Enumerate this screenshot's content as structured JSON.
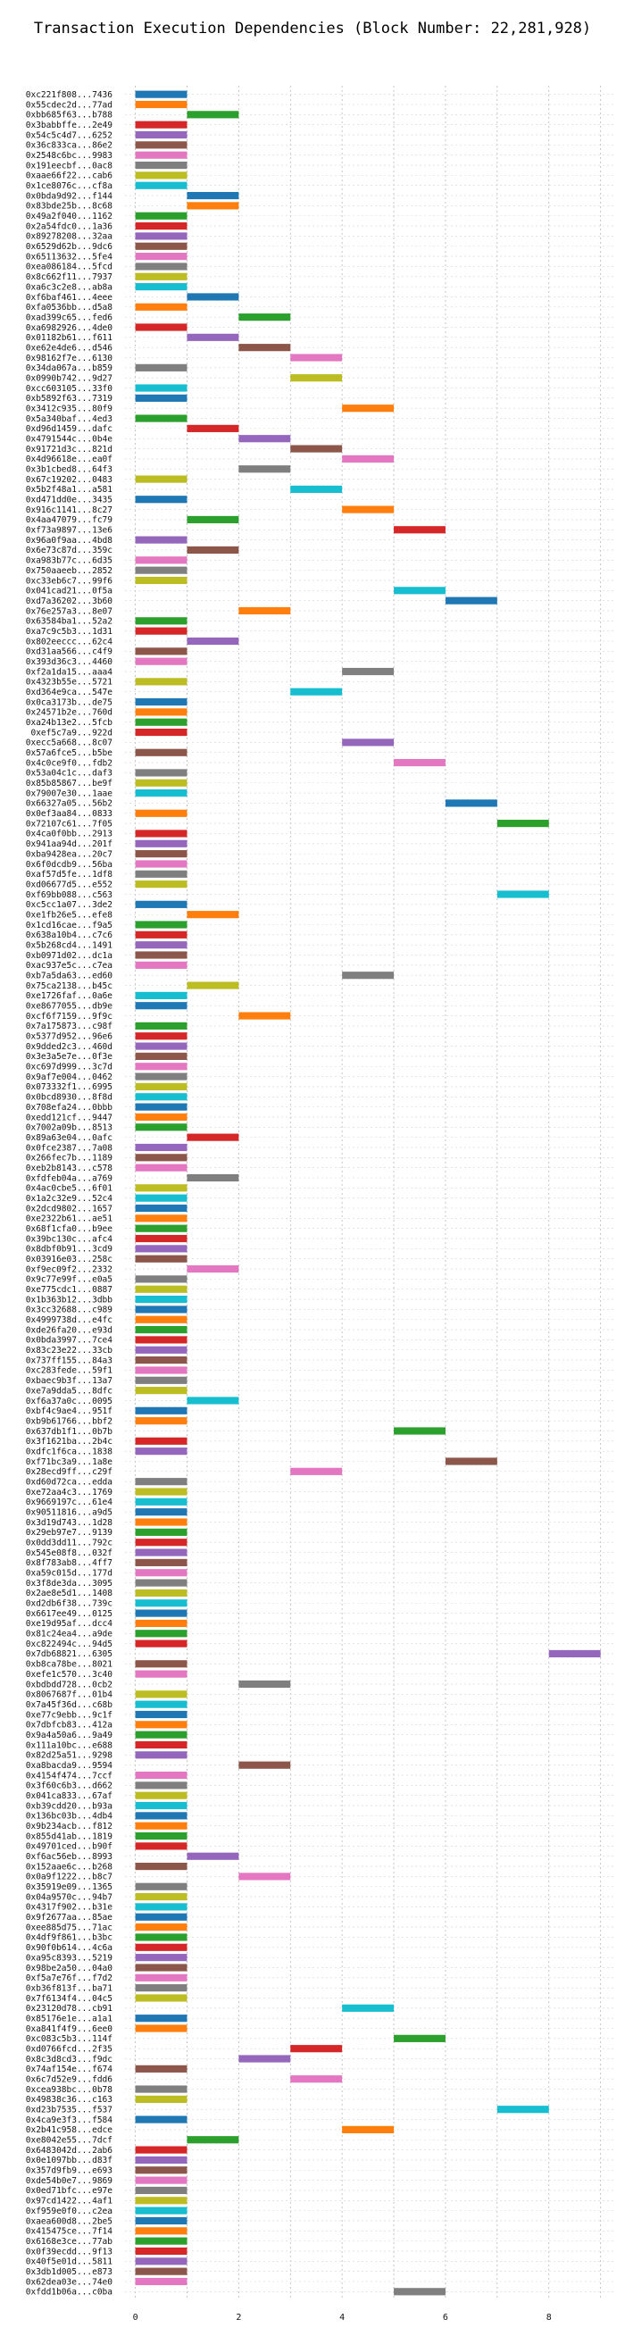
{
  "chart_data": {
    "type": "bar",
    "orientation": "horizontal-gantt",
    "title": "Transaction Execution Dependencies (Block Number: 22,281,928)",
    "xlabel": "",
    "ylabel": "",
    "xlim": [
      -0.2,
      9.3
    ],
    "xticks": [
      0,
      2,
      4,
      6,
      8
    ],
    "grid": true,
    "colors": [
      "#1f77b4",
      "#ff7f0e",
      "#2ca02c",
      "#d62728",
      "#9467bd",
      "#8c564b",
      "#e377c2",
      "#7f7f7f",
      "#bcbd22",
      "#17becf"
    ],
    "transactions": [
      {
        "tx": "0xc221f808...7436",
        "start": 0
      },
      {
        "tx": "0x55cdec2d...77ad",
        "start": 0
      },
      {
        "tx": "0xbb685f63...b788",
        "start": 1
      },
      {
        "tx": "0x3babbffe...2e49",
        "start": 0
      },
      {
        "tx": "0x54c5c4d7...6252",
        "start": 0
      },
      {
        "tx": "0x36c833ca...86e2",
        "start": 0
      },
      {
        "tx": "0x2548c6bc...9983",
        "start": 0
      },
      {
        "tx": "0x191eecbf...0ac8",
        "start": 0
      },
      {
        "tx": "0xaae66f22...cab6",
        "start": 0
      },
      {
        "tx": "0x1ce8076c...cf8a",
        "start": 0
      },
      {
        "tx": "0x0bda9d92...f144",
        "start": 1
      },
      {
        "tx": "0x83bde25b...8c68",
        "start": 1
      },
      {
        "tx": "0x49a2f040...1162",
        "start": 0
      },
      {
        "tx": "0x2a54fdc0...1a36",
        "start": 0
      },
      {
        "tx": "0x89278208...32aa",
        "start": 0
      },
      {
        "tx": "0x6529d62b...9dc6",
        "start": 0
      },
      {
        "tx": "0x65113632...5fe4",
        "start": 0
      },
      {
        "tx": "0xea086184...5fcd",
        "start": 0
      },
      {
        "tx": "0x8c662f11...7937",
        "start": 0
      },
      {
        "tx": "0xa6c3c2e8...ab8a",
        "start": 0
      },
      {
        "tx": "0xf6baf461...4eee",
        "start": 1
      },
      {
        "tx": "0xfa0536bb...d5a8",
        "start": 0
      },
      {
        "tx": "0xad399c65...fed6",
        "start": 2
      },
      {
        "tx": "0xa6982926...4de0",
        "start": 0
      },
      {
        "tx": "0x01182b61...f611",
        "start": 1
      },
      {
        "tx": "0xe62e4de6...d546",
        "start": 2
      },
      {
        "tx": "0x98162f7e...6130",
        "start": 3
      },
      {
        "tx": "0x34da067a...b859",
        "start": 0
      },
      {
        "tx": "0x0990b742...9d27",
        "start": 3
      },
      {
        "tx": "0xcc603105...33f0",
        "start": 0
      },
      {
        "tx": "0xb5892f63...7319",
        "start": 0
      },
      {
        "tx": "0x3412c935...80f9",
        "start": 4
      },
      {
        "tx": "0x5a340baf...4ed3",
        "start": 0
      },
      {
        "tx": "0xd96d1459...dafc",
        "start": 1
      },
      {
        "tx": "0x4791544c...0b4e",
        "start": 2
      },
      {
        "tx": "0x91721d3c...821d",
        "start": 3
      },
      {
        "tx": "0x4d96618e...ea0f",
        "start": 4
      },
      {
        "tx": "0x3b1cbed8...64f3",
        "start": 2
      },
      {
        "tx": "0x67c19202...0483",
        "start": 0
      },
      {
        "tx": "0x5b2f48a1...a581",
        "start": 3
      },
      {
        "tx": "0xd471dd0e...3435",
        "start": 0
      },
      {
        "tx": "0x916c1141...8c27",
        "start": 4
      },
      {
        "tx": "0x4aa47079...fc79",
        "start": 1
      },
      {
        "tx": "0xf73a9897...13e6",
        "start": 5
      },
      {
        "tx": "0x96a0f9aa...4bd8",
        "start": 0
      },
      {
        "tx": "0x6e73c87d...359c",
        "start": 1
      },
      {
        "tx": "0xa983b77c...6d35",
        "start": 0
      },
      {
        "tx": "0x750aaeeb...2852",
        "start": 0
      },
      {
        "tx": "0xc33eb6c7...99f6",
        "start": 0
      },
      {
        "tx": "0x041cad21...0f5a",
        "start": 5
      },
      {
        "tx": "0xd7a36202...3b60",
        "start": 6
      },
      {
        "tx": "0x76e257a3...8e07",
        "start": 2
      },
      {
        "tx": "0x63584ba1...52a2",
        "start": 0
      },
      {
        "tx": "0xa7c9c5b3...1d31",
        "start": 0
      },
      {
        "tx": "0x802eeccc...62c4",
        "start": 1
      },
      {
        "tx": "0xd31aa566...c4f9",
        "start": 0
      },
      {
        "tx": "0x393d36c3...4460",
        "start": 0
      },
      {
        "tx": "0xf2a1da15...aaa4",
        "start": 4
      },
      {
        "tx": "0x4323b55e...5721",
        "start": 0
      },
      {
        "tx": "0xd364e9ca...547e",
        "start": 3
      },
      {
        "tx": "0x0ca3173b...de75",
        "start": 0
      },
      {
        "tx": "0x24571b2e...760d",
        "start": 0
      },
      {
        "tx": "0xa24b13e2...5fcb",
        "start": 0
      },
      {
        "tx": "0xef5c7a9...922d",
        "start": 0
      },
      {
        "tx": "0xecc5a668...8c07",
        "start": 4
      },
      {
        "tx": "0x57a6fce5...b5be",
        "start": 0
      },
      {
        "tx": "0x4c0ce9f0...fdb2",
        "start": 5
      },
      {
        "tx": "0x53a04c1c...daf3",
        "start": 0
      },
      {
        "tx": "0x85b85867...be9f",
        "start": 0
      },
      {
        "tx": "0x79007e30...1aae",
        "start": 0
      },
      {
        "tx": "0x66327a05...56b2",
        "start": 6
      },
      {
        "tx": "0x0ef3aa84...0833",
        "start": 0
      },
      {
        "tx": "0x72107c61...7f05",
        "start": 7
      },
      {
        "tx": "0x4ca0f0bb...2913",
        "start": 0
      },
      {
        "tx": "0x941aa94d...201f",
        "start": 0
      },
      {
        "tx": "0xba9428ea...20c7",
        "start": 0
      },
      {
        "tx": "0x6f0dcdb9...56ba",
        "start": 0
      },
      {
        "tx": "0xaf57d5fe...1df8",
        "start": 0
      },
      {
        "tx": "0xd06677d5...e552",
        "start": 0
      },
      {
        "tx": "0xf69bb088...c563",
        "start": 7
      },
      {
        "tx": "0xc5cc1a07...3de2",
        "start": 0
      },
      {
        "tx": "0xe1fb26e5...efe8",
        "start": 1
      },
      {
        "tx": "0x1cd16cae...f9a5",
        "start": 0
      },
      {
        "tx": "0x638a10b4...c7c6",
        "start": 0
      },
      {
        "tx": "0x5b268cd4...1491",
        "start": 0
      },
      {
        "tx": "0xb0971d02...dc1a",
        "start": 0
      },
      {
        "tx": "0xac937e5c...c7ea",
        "start": 0
      },
      {
        "tx": "0xb7a5da63...ed60",
        "start": 4
      },
      {
        "tx": "0x75ca2138...b45c",
        "start": 1
      },
      {
        "tx": "0xe1726faf...0a6e",
        "start": 0
      },
      {
        "tx": "0xe8677055...db9e",
        "start": 0
      },
      {
        "tx": "0xcf6f7159...9f9c",
        "start": 2
      },
      {
        "tx": "0x7a175873...c98f",
        "start": 0
      },
      {
        "tx": "0x5377d952...96e6",
        "start": 0
      },
      {
        "tx": "0x9dded2c3...460d",
        "start": 0
      },
      {
        "tx": "0x3e3a5e7e...0f3e",
        "start": 0
      },
      {
        "tx": "0xc697d999...3c7d",
        "start": 0
      },
      {
        "tx": "0x9af7e004...0462",
        "start": 0
      },
      {
        "tx": "0x073332f1...6995",
        "start": 0
      },
      {
        "tx": "0x0bcd8930...8f8d",
        "start": 0
      },
      {
        "tx": "0x708efa24...0bbb",
        "start": 0
      },
      {
        "tx": "0xedd121cf...9447",
        "start": 0
      },
      {
        "tx": "0x7002a09b...8513",
        "start": 0
      },
      {
        "tx": "0x89a63e04...0afc",
        "start": 1
      },
      {
        "tx": "0x0fce2387...7a08",
        "start": 0
      },
      {
        "tx": "0x266fec7b...1189",
        "start": 0
      },
      {
        "tx": "0xeb2b8143...c578",
        "start": 0
      },
      {
        "tx": "0xfdfeb04a...a769",
        "start": 1
      },
      {
        "tx": "0x4ac0cbe5...6f01",
        "start": 0
      },
      {
        "tx": "0x1a2c32e9...52c4",
        "start": 0
      },
      {
        "tx": "0x2dcd9802...1657",
        "start": 0
      },
      {
        "tx": "0xe2322b61...ae51",
        "start": 0
      },
      {
        "tx": "0x68f1cfa0...b9ee",
        "start": 0
      },
      {
        "tx": "0x39bc130c...afc4",
        "start": 0
      },
      {
        "tx": "0x8dbf0b91...3cd9",
        "start": 0
      },
      {
        "tx": "0x03916e03...258c",
        "start": 0
      },
      {
        "tx": "0xf9ec09f2...2332",
        "start": 1
      },
      {
        "tx": "0x9c77e99f...e0a5",
        "start": 0
      },
      {
        "tx": "0xe775cdc1...0887",
        "start": 0
      },
      {
        "tx": "0x1b363b12...3dbb",
        "start": 0
      },
      {
        "tx": "0x3cc32688...c989",
        "start": 0
      },
      {
        "tx": "0x4999738d...e4fc",
        "start": 0
      },
      {
        "tx": "0xde26fa20...e93d",
        "start": 0
      },
      {
        "tx": "0x0bda3997...7ce4",
        "start": 0
      },
      {
        "tx": "0x83c23e22...33cb",
        "start": 0
      },
      {
        "tx": "0x737ff155...84a3",
        "start": 0
      },
      {
        "tx": "0xc283fede...59f1",
        "start": 0
      },
      {
        "tx": "0xbaec9b3f...13a7",
        "start": 0
      },
      {
        "tx": "0xe7a9dda5...8dfc",
        "start": 0
      },
      {
        "tx": "0xf6a37a0c...0095",
        "start": 1
      },
      {
        "tx": "0xbf4c9ae4...951f",
        "start": 0
      },
      {
        "tx": "0xb9b61766...bbf2",
        "start": 0
      },
      {
        "tx": "0x637db1f1...0b7b",
        "start": 5
      },
      {
        "tx": "0x3f1621ba...2b4c",
        "start": 0
      },
      {
        "tx": "0xdfc1f6ca...1838",
        "start": 0
      },
      {
        "tx": "0xf71bc3a9...1a8e",
        "start": 6
      },
      {
        "tx": "0x28ecd9ff...c29f",
        "start": 3
      },
      {
        "tx": "0xd60d72ca...edda",
        "start": 0
      },
      {
        "tx": "0xe72aa4c3...1769",
        "start": 0
      },
      {
        "tx": "0x9669197c...61e4",
        "start": 0
      },
      {
        "tx": "0x90511816...a9d5",
        "start": 0
      },
      {
        "tx": "0x3d19d743...1d28",
        "start": 0
      },
      {
        "tx": "0x29eb97e7...9139",
        "start": 0
      },
      {
        "tx": "0x0dd3dd11...792c",
        "start": 0
      },
      {
        "tx": "0x545e08f8...032f",
        "start": 0
      },
      {
        "tx": "0x8f783ab8...4ff7",
        "start": 0
      },
      {
        "tx": "0xa59c015d...177d",
        "start": 0
      },
      {
        "tx": "0x3f8de3da...3095",
        "start": 0
      },
      {
        "tx": "0x2ae8e5d1...1408",
        "start": 0
      },
      {
        "tx": "0xd2db6f38...739c",
        "start": 0
      },
      {
        "tx": "0x6617ee49...0125",
        "start": 0
      },
      {
        "tx": "0xe19d95af...dcc4",
        "start": 0
      },
      {
        "tx": "0x81c24ea4...a9de",
        "start": 0
      },
      {
        "tx": "0xc822494c...94d5",
        "start": 0
      },
      {
        "tx": "0x7db68821...6305",
        "start": 8
      },
      {
        "tx": "0xb8ca78be...8021",
        "start": 0
      },
      {
        "tx": "0xefe1c570...3c40",
        "start": 0
      },
      {
        "tx": "0xbdbdd728...0cb2",
        "start": 2
      },
      {
        "tx": "0x8067687f...01b4",
        "start": 0
      },
      {
        "tx": "0x7a45f36d...c68b",
        "start": 0
      },
      {
        "tx": "0xe77c9ebb...9c1f",
        "start": 0
      },
      {
        "tx": "0x7dbfcb83...412a",
        "start": 0
      },
      {
        "tx": "0x9a4a50a6...9a49",
        "start": 0
      },
      {
        "tx": "0x111a10bc...e688",
        "start": 0
      },
      {
        "tx": "0x82d25a51...9298",
        "start": 0
      },
      {
        "tx": "0xa8bacda9...9594",
        "start": 2
      },
      {
        "tx": "0x4154f474...7ccf",
        "start": 0
      },
      {
        "tx": "0x3f60c6b3...d662",
        "start": 0
      },
      {
        "tx": "0x041ca833...67af",
        "start": 0
      },
      {
        "tx": "0xb39cdd20...b93a",
        "start": 0
      },
      {
        "tx": "0x136bc03b...4db4",
        "start": 0
      },
      {
        "tx": "0x9b234acb...f812",
        "start": 0
      },
      {
        "tx": "0x855d41ab...1819",
        "start": 0
      },
      {
        "tx": "0x49701ced...b90f",
        "start": 0
      },
      {
        "tx": "0xf6ac56eb...8993",
        "start": 1
      },
      {
        "tx": "0x152aae6c...b268",
        "start": 0
      },
      {
        "tx": "0x0a9f1222...b8c7",
        "start": 2
      },
      {
        "tx": "0x35919e09...1365",
        "start": 0
      },
      {
        "tx": "0x04a9570c...94b7",
        "start": 0
      },
      {
        "tx": "0x4317f902...b31e",
        "start": 0
      },
      {
        "tx": "0x9f2677aa...85ae",
        "start": 0
      },
      {
        "tx": "0xee885d75...71ac",
        "start": 0
      },
      {
        "tx": "0x4df9f861...b3bc",
        "start": 0
      },
      {
        "tx": "0x90f0b614...4c6a",
        "start": 0
      },
      {
        "tx": "0xa95c8393...5219",
        "start": 0
      },
      {
        "tx": "0x98be2a50...04a0",
        "start": 0
      },
      {
        "tx": "0xf5a7e76f...f7d2",
        "start": 0
      },
      {
        "tx": "0xb36f813f...ba71",
        "start": 0
      },
      {
        "tx": "0x7f6134f4...04c5",
        "start": 0
      },
      {
        "tx": "0x23120d78...cb91",
        "start": 4
      },
      {
        "tx": "0x85176e1e...a1a1",
        "start": 0
      },
      {
        "tx": "0xa841f4f9...6ee0",
        "start": 0
      },
      {
        "tx": "0xc083c5b3...114f",
        "start": 5
      },
      {
        "tx": "0xd0766fcd...2f35",
        "start": 3
      },
      {
        "tx": "0x8c3d8cd3...f9dc",
        "start": 2
      },
      {
        "tx": "0x74af154e...f674",
        "start": 0
      },
      {
        "tx": "0x6c7d52e9...fdd6",
        "start": 3
      },
      {
        "tx": "0xcea938bc...0b78",
        "start": 0
      },
      {
        "tx": "0x49838c36...c163",
        "start": 0
      },
      {
        "tx": "0xd23b7535...f537",
        "start": 7
      },
      {
        "tx": "0x4ca9e3f3...f584",
        "start": 0
      },
      {
        "tx": "0x2b41c958...edce",
        "start": 4
      },
      {
        "tx": "0xe8042e55...7dcf",
        "start": 1
      },
      {
        "tx": "0x6483042d...2ab6",
        "start": 0
      },
      {
        "tx": "0x0e1097bb...d83f",
        "start": 0
      },
      {
        "tx": "0x357d9fb9...e693",
        "start": 0
      },
      {
        "tx": "0xde54b0e7...9869",
        "start": 0
      },
      {
        "tx": "0x0ed71bfc...e97e",
        "start": 0
      },
      {
        "tx": "0x97cd1422...4af1",
        "start": 0
      },
      {
        "tx": "0xf959e0f0...c2ea",
        "start": 0
      },
      {
        "tx": "0xaea600d8...2be5",
        "start": 0
      },
      {
        "tx": "0x415475ce...7f14",
        "start": 0
      },
      {
        "tx": "0x6168e3ce...77ab",
        "start": 0
      },
      {
        "tx": "0x0f39ecdd...9f13",
        "start": 0
      },
      {
        "tx": "0x40f5e01d...5811",
        "start": 0
      },
      {
        "tx": "0x3db1d005...e873",
        "start": 0
      },
      {
        "tx": "0x62dea03e...74e0",
        "start": 0
      },
      {
        "tx": "0xfdd1b06a...c0ba",
        "start": 5
      }
    ]
  }
}
